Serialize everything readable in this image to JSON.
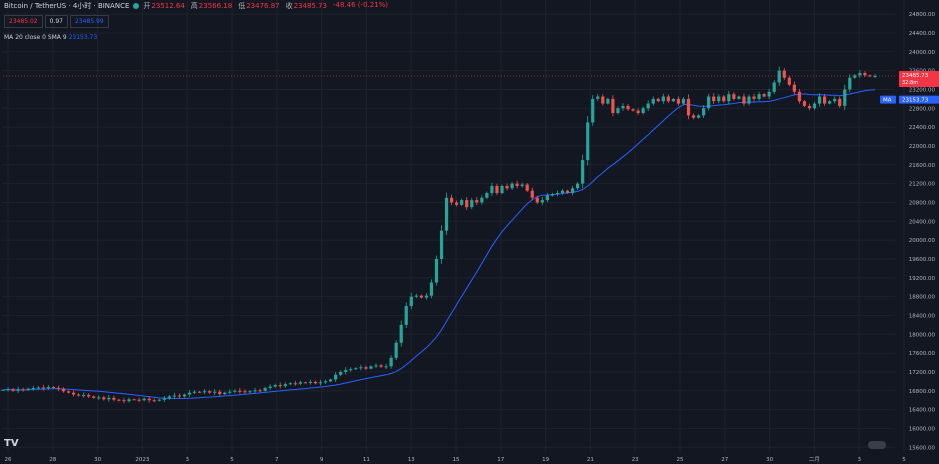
{
  "header": {
    "symbol": "Bitcoin / TetherUS · 4小时 · BINANCE",
    "open_label": "开",
    "open": "23512.64",
    "high_label": "高",
    "high": "23566.18",
    "low_label": "低",
    "low": "23476.87",
    "close_label": "收",
    "close": "23485.73",
    "change": "-48.46 (-0.21%)"
  },
  "bidask": {
    "bid": "23485.02",
    "spread": "0.97",
    "ask": "23485.99"
  },
  "indicator": {
    "name": "MA 20 close 0 SMA 9",
    "value": "23153.73"
  },
  "colors": {
    "background": "#131722",
    "up": "#26a69a",
    "down": "#ef5350",
    "ma": "#2962ff",
    "grid": "#1e222d"
  },
  "chart_data": {
    "type": "candlestick",
    "x_tick_labels": [
      "26",
      "28",
      "30",
      "2023",
      "3",
      "5",
      "7",
      "9",
      "11",
      "13",
      "15",
      "17",
      "19",
      "21",
      "23",
      "25",
      "27",
      "30",
      "二月",
      "3",
      "5"
    ],
    "y_tick_labels": [
      "15600.00",
      "16000.00",
      "16400.00",
      "16800.00",
      "17200.00",
      "17600.00",
      "18000.00",
      "18400.00",
      "18800.00",
      "19200.00",
      "19600.00",
      "20000.00",
      "20400.00",
      "20800.00",
      "21200.00",
      "21600.00",
      "22000.00",
      "22400.00",
      "22800.00",
      "23200.00",
      "23600.00",
      "24000.00",
      "24400.00",
      "24800.00"
    ],
    "ylim": [
      15500,
      25100
    ],
    "price_label": "23485.73",
    "countdown_label": "32:8m",
    "ma_label": "23153.73",
    "ma_badge": "MA",
    "closes": [
      16820,
      16835,
      16800,
      16830,
      16815,
      16845,
      16860,
      16870,
      16855,
      16880,
      16860,
      16840,
      16790,
      16760,
      16720,
      16700,
      16710,
      16680,
      16650,
      16660,
      16620,
      16650,
      16610,
      16600,
      16580,
      16620,
      16610,
      16600,
      16630,
      16600,
      16590,
      16610,
      16640,
      16680,
      16700,
      16680,
      16720,
      16760,
      16780,
      16770,
      16790,
      16760,
      16780,
      16730,
      16760,
      16780,
      16800,
      16790,
      16770,
      16790,
      16810,
      16800,
      16860,
      16890,
      16920,
      16900,
      16940,
      16960,
      16950,
      16980,
      16970,
      16990,
      16960,
      16980,
      17000,
      17040,
      17140,
      17200,
      17240,
      17260,
      17280,
      17300,
      17270,
      17320,
      17340,
      17310,
      17320,
      17500,
      17820,
      18200,
      18600,
      18800,
      18820,
      18780,
      18820,
      19100,
      19600,
      20200,
      20900,
      20800,
      20750,
      20850,
      20700,
      20850,
      20800,
      20900,
      21000,
      21150,
      21000,
      21150,
      21100,
      21200,
      21150,
      21180,
      21050,
      20900,
      20800,
      20850,
      20950,
      20980,
      21000,
      21050,
      21000,
      21100,
      21200,
      21700,
      22500,
      23000,
      23050,
      22900,
      23000,
      22700,
      22800,
      22850,
      22780,
      22750,
      22700,
      22800,
      22900,
      23000,
      22950,
      23050,
      22950,
      23000,
      22900,
      23000,
      22650,
      22600,
      22650,
      22800,
      23050,
      22950,
      23050,
      22950,
      23100,
      23000,
      23050,
      22900,
      23050,
      23000,
      23100,
      23050,
      23150,
      23350,
      23600,
      23450,
      23300,
      23150,
      22950,
      22850,
      22800,
      22900,
      23050,
      22900,
      22950,
      23000,
      22850,
      23200,
      23450,
      23500,
      23550,
      23500,
      23480,
      23486
    ],
    "ma_start": [
      16800,
      10
    ],
    "ma_end_value": 23153.73
  }
}
